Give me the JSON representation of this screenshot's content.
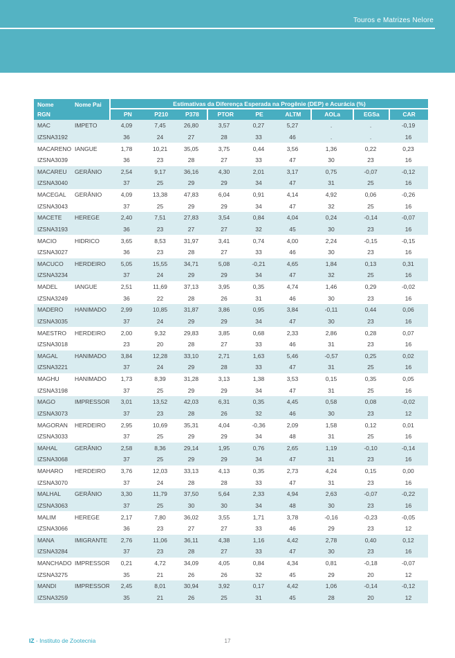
{
  "page_header": {
    "title": "Touros e Matrizes Nelore"
  },
  "table": {
    "header": {
      "nome": "Nome",
      "rgn": "RGN",
      "nome_pai": "Nome Pai",
      "span_title": "Estimativas da Diferença Esperada na Progênie (DEP) e Acurácia (%)",
      "columns": [
        "PN",
        "P210",
        "P378",
        "PTOR",
        "PE",
        "ALTM",
        "AOLa",
        "EGSa",
        "CAR"
      ]
    },
    "animals": [
      {
        "nome": "MAC",
        "pai": "IMPETO",
        "rgn": "IZSNA3192",
        "dep": [
          "4,09",
          "7,45",
          "26,80",
          "3,57",
          "0,27",
          "5,27",
          ".",
          ".",
          "-0,19"
        ],
        "acc": [
          "36",
          "24",
          "27",
          "28",
          "33",
          "46",
          ".",
          ".",
          "16"
        ]
      },
      {
        "nome": "MACARENO",
        "pai": "IANGUE",
        "rgn": "IZSNA3039",
        "dep": [
          "1,78",
          "10,21",
          "35,05",
          "3,75",
          "0,44",
          "3,56",
          "1,36",
          "0,22",
          "0,23"
        ],
        "acc": [
          "36",
          "23",
          "28",
          "27",
          "33",
          "47",
          "30",
          "23",
          "16"
        ]
      },
      {
        "nome": "MACAREU",
        "pai": "GERÂNIO",
        "rgn": "IZSNA3040",
        "dep": [
          "2,54",
          "9,17",
          "36,16",
          "4,30",
          "2,01",
          "3,17",
          "0,75",
          "-0,07",
          "-0,12"
        ],
        "acc": [
          "37",
          "25",
          "29",
          "29",
          "34",
          "47",
          "31",
          "25",
          "16"
        ]
      },
      {
        "nome": "MACEGAL",
        "pai": "GERÂNIO",
        "rgn": "IZSNA3043",
        "dep": [
          "4,09",
          "13,38",
          "47,83",
          "6,04",
          "0,91",
          "4,14",
          "4,92",
          "0,06",
          "-0,26"
        ],
        "acc": [
          "37",
          "25",
          "29",
          "29",
          "34",
          "47",
          "32",
          "25",
          "16"
        ]
      },
      {
        "nome": "MACETE",
        "pai": "HEREGE",
        "rgn": "IZSNA3193",
        "dep": [
          "2,40",
          "7,51",
          "27,83",
          "3,54",
          "0,84",
          "4,04",
          "0,24",
          "-0,14",
          "-0,07"
        ],
        "acc": [
          "36",
          "23",
          "27",
          "27",
          "32",
          "45",
          "30",
          "23",
          "16"
        ]
      },
      {
        "nome": "MACIO",
        "pai": "HIDRICO",
        "rgn": "IZSNA3027",
        "dep": [
          "3,65",
          "8,53",
          "31,97",
          "3,41",
          "0,74",
          "4,00",
          "2,24",
          "-0,15",
          "-0,15"
        ],
        "acc": [
          "36",
          "23",
          "28",
          "27",
          "33",
          "46",
          "30",
          "23",
          "16"
        ]
      },
      {
        "nome": "MACUCO",
        "pai": "HERDEIRO",
        "rgn": "IZSNA3234",
        "dep": [
          "5,05",
          "15,55",
          "34,71",
          "5,08",
          "-0,21",
          "4,65",
          "1,84",
          "0,13",
          "0,31"
        ],
        "acc": [
          "37",
          "24",
          "29",
          "29",
          "34",
          "47",
          "32",
          "25",
          "16"
        ]
      },
      {
        "nome": "MADEL",
        "pai": "IANGUE",
        "rgn": "IZSNA3249",
        "dep": [
          "2,51",
          "11,69",
          "37,13",
          "3,95",
          "0,35",
          "4,74",
          "1,46",
          "0,29",
          "-0,02"
        ],
        "acc": [
          "36",
          "22",
          "28",
          "26",
          "31",
          "46",
          "30",
          "23",
          "16"
        ]
      },
      {
        "nome": "MADERO",
        "pai": "HANIMADO",
        "rgn": "IZSNA3035",
        "dep": [
          "2,99",
          "10,85",
          "31,87",
          "3,86",
          "0,95",
          "3,84",
          "-0,11",
          "0,44",
          "0,06"
        ],
        "acc": [
          "37",
          "24",
          "29",
          "29",
          "34",
          "47",
          "30",
          "23",
          "16"
        ]
      },
      {
        "nome": "MAESTRO",
        "pai": "HERDEIRO",
        "rgn": "IZSNA3018",
        "dep": [
          "2,00",
          "9,32",
          "29,83",
          "3,85",
          "0,68",
          "2,33",
          "2,86",
          "0,28",
          "0,07"
        ],
        "acc": [
          "23",
          "20",
          "28",
          "27",
          "33",
          "46",
          "31",
          "23",
          "16"
        ]
      },
      {
        "nome": "MAGAL",
        "pai": "HANIMADO",
        "rgn": "IZSNA3221",
        "dep": [
          "3,84",
          "12,28",
          "33,10",
          "2,71",
          "1,63",
          "5,46",
          "-0,57",
          "0,25",
          "0,02"
        ],
        "acc": [
          "37",
          "24",
          "29",
          "28",
          "33",
          "47",
          "31",
          "25",
          "16"
        ]
      },
      {
        "nome": "MAGHU",
        "pai": "HANIMADO",
        "rgn": "IZSNA3198",
        "dep": [
          "1,73",
          "8,39",
          "31,28",
          "3,13",
          "1,38",
          "3,53",
          "0,15",
          "0,35",
          "0,05"
        ],
        "acc": [
          "37",
          "25",
          "29",
          "29",
          "34",
          "47",
          "31",
          "25",
          "16"
        ]
      },
      {
        "nome": "MAGO",
        "pai": "IMPRESSOR",
        "rgn": "IZSNA3073",
        "dep": [
          "3,01",
          "13,52",
          "42,03",
          "6,31",
          "0,35",
          "4,45",
          "0,58",
          "0,08",
          "-0,02"
        ],
        "acc": [
          "37",
          "23",
          "28",
          "26",
          "32",
          "46",
          "30",
          "23",
          "12"
        ]
      },
      {
        "nome": "MAGORAN",
        "pai": "HERDEIRO",
        "rgn": "IZSNA3033",
        "dep": [
          "2,95",
          "10,69",
          "35,31",
          "4,04",
          "-0,36",
          "2,09",
          "1,58",
          "0,12",
          "0,01"
        ],
        "acc": [
          "37",
          "25",
          "29",
          "29",
          "34",
          "48",
          "31",
          "25",
          "16"
        ]
      },
      {
        "nome": "MAHAL",
        "pai": "GERÂNIO",
        "rgn": "IZSNA3068",
        "dep": [
          "2,58",
          "8,36",
          "29,14",
          "1,95",
          "0,76",
          "2,65",
          "1,19",
          "-0,10",
          "-0,14"
        ],
        "acc": [
          "37",
          "25",
          "29",
          "29",
          "34",
          "47",
          "31",
          "23",
          "16"
        ]
      },
      {
        "nome": "MAHARO",
        "pai": "HERDEIRO",
        "rgn": "IZSNA3070",
        "dep": [
          "3,76",
          "12,03",
          "33,13",
          "4,13",
          "0,35",
          "2,73",
          "4,24",
          "0,15",
          "0,00"
        ],
        "acc": [
          "37",
          "24",
          "28",
          "28",
          "33",
          "47",
          "31",
          "23",
          "16"
        ]
      },
      {
        "nome": "MALHAL",
        "pai": "GERÂNIO",
        "rgn": "IZSNA3063",
        "dep": [
          "3,30",
          "11,79",
          "37,50",
          "5,64",
          "2,33",
          "4,94",
          "2,63",
          "-0,07",
          "-0,22"
        ],
        "acc": [
          "37",
          "25",
          "30",
          "30",
          "34",
          "48",
          "30",
          "23",
          "16"
        ]
      },
      {
        "nome": "MALIM",
        "pai": "HEREGE",
        "rgn": "IZSNA3066",
        "dep": [
          "2,17",
          "7,80",
          "36,02",
          "3,55",
          "1,71",
          "3,78",
          "-0,16",
          "-0,23",
          "-0,05"
        ],
        "acc": [
          "36",
          "23",
          "27",
          "27",
          "33",
          "46",
          "29",
          "23",
          "12"
        ]
      },
      {
        "nome": "MANA",
        "pai": "IMIGRANTE",
        "rgn": "IZSNA3284",
        "dep": [
          "2,76",
          "11,06",
          "36,11",
          "4,38",
          "1,16",
          "4,42",
          "2,78",
          "0,40",
          "0,12"
        ],
        "acc": [
          "37",
          "23",
          "28",
          "27",
          "33",
          "47",
          "30",
          "23",
          "16"
        ]
      },
      {
        "nome": "MANCHADO",
        "pai": "IMPRESSOR",
        "rgn": "IZSNA3275",
        "dep": [
          "0,21",
          "4,72",
          "34,09",
          "4,05",
          "0,84",
          "4,34",
          "0,81",
          "-0,18",
          "-0,07"
        ],
        "acc": [
          "35",
          "21",
          "26",
          "26",
          "32",
          "45",
          "29",
          "20",
          "12"
        ]
      },
      {
        "nome": "MANDI",
        "pai": "IMPRESSOR",
        "rgn": "IZSNA3259",
        "dep": [
          "2,45",
          "8,01",
          "30,94",
          "3,92",
          "0,17",
          "4,42",
          "1,06",
          "-0,14",
          "-0,12"
        ],
        "acc": [
          "35",
          "21",
          "26",
          "25",
          "31",
          "45",
          "28",
          "20",
          "12"
        ]
      }
    ]
  },
  "footer": {
    "brand_bold": "IZ",
    "brand_rest": " - Instituto de Zootecnia",
    "page_number": "17"
  },
  "colors": {
    "banner_teal": "#54b3c3",
    "table_header_teal": "#48aec1",
    "row_stripe_blue": "#d9ecf0",
    "body_text": "#414042",
    "footer_teal": "#35aac2",
    "page_number_gray": "#808184"
  }
}
